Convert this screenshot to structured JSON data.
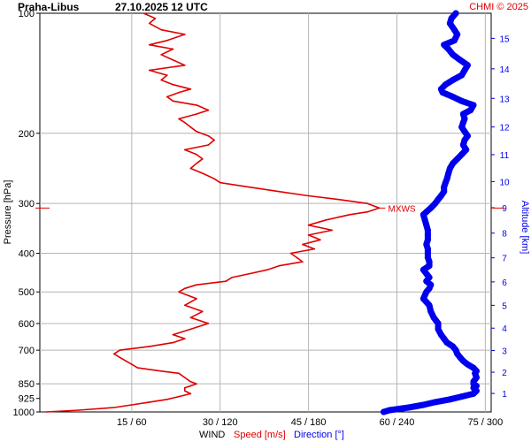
{
  "header": {
    "station": "Praha-Libus",
    "datetime": "27.10.2025 12 UTC",
    "copyright": "CHMI © 2025"
  },
  "axes": {
    "left_label": "Pressure [hPa]",
    "right_label": "Altitude [km]",
    "bottom_wind": "WIND",
    "bottom_speed": "Speed [m/s]",
    "bottom_direction": "Direction [°]"
  },
  "colors": {
    "speed": "#e00000",
    "direction": "#0000ee",
    "grid": "#b4b4b4",
    "max_marker": "#e00000"
  },
  "chart_data": {
    "type": "line",
    "title": "Praha-Libus 27.10.2025 12 UTC",
    "y_scale": "log pressure (inverted)",
    "pressure_ticks": [
      100,
      200,
      300,
      400,
      500,
      600,
      700,
      850,
      925,
      1000
    ],
    "altitude_ticks_km": [
      1,
      2,
      3,
      4,
      5,
      6,
      7,
      8,
      9,
      10,
      11,
      12,
      13,
      14,
      15
    ],
    "x_tick_labels": [
      "15 / 60",
      "30 / 120",
      "45 / 180",
      "60 / 240",
      "75 / 300"
    ],
    "speed_axis": {
      "label": "Speed [m/s]",
      "range": [
        -0.6,
        76
      ],
      "ticks": [
        15,
        30,
        45,
        60,
        75
      ]
    },
    "direction_axis": {
      "label": "Direction [°]",
      "range": [
        -2.4,
        304
      ],
      "ticks": [
        60,
        120,
        180,
        240,
        300
      ]
    },
    "max_wind_label": "MXWS",
    "max_wind_pressure_hPa": 308,
    "series": [
      {
        "name": "Speed [m/s]",
        "unit": "m/s",
        "pressure_hPa": [
          1000,
          990,
          975,
          960,
          945,
          930,
          915,
          900,
          885,
          870,
          860,
          850,
          840,
          820,
          800,
          790,
          775,
          760,
          745,
          730,
          715,
          700,
          685,
          670,
          655,
          640,
          620,
          600,
          580,
          560,
          540,
          520,
          500,
          490,
          480,
          470,
          460,
          450,
          440,
          430,
          420,
          410,
          400,
          390,
          380,
          370,
          360,
          350,
          340,
          330,
          320,
          315,
          308,
          300,
          293,
          287,
          280,
          273,
          266,
          260,
          252,
          245,
          238,
          232,
          226,
          220,
          214,
          208,
          203,
          198,
          193,
          188,
          184,
          179,
          175,
          170,
          166,
          162,
          158,
          155,
          151,
          147,
          143,
          139,
          135,
          131,
          127,
          123,
          120,
          117,
          113,
          110,
          106,
          103,
          100
        ],
        "values": [
          0.5,
          6,
          12,
          15,
          18,
          21,
          23,
          25,
          24,
          24,
          25,
          26,
          25,
          24,
          23,
          20,
          16,
          15,
          14,
          13,
          12,
          13,
          18,
          22,
          24,
          22,
          25,
          28,
          25,
          27,
          24,
          26,
          23,
          24,
          26,
          31,
          32,
          35,
          38,
          40,
          44,
          43,
          42,
          46,
          44,
          47,
          45,
          49,
          45,
          48,
          52,
          55,
          57,
          55,
          50,
          45,
          40,
          35,
          30,
          29,
          27,
          25,
          26,
          27,
          26,
          24,
          28,
          29,
          28,
          26,
          25,
          24,
          23,
          26,
          28,
          26,
          22,
          21,
          23,
          25,
          22,
          20,
          21,
          18,
          24,
          22,
          20,
          22,
          18,
          21,
          24,
          20,
          18,
          19,
          17
        ]
      },
      {
        "name": "Direction [°]",
        "unit": "deg",
        "pressure_hPa": [
          1000,
          990,
          975,
          960,
          945,
          930,
          915,
          900,
          885,
          870,
          860,
          850,
          840,
          820,
          800,
          790,
          775,
          760,
          745,
          730,
          715,
          700,
          685,
          670,
          655,
          640,
          620,
          600,
          580,
          560,
          540,
          520,
          500,
          490,
          480,
          470,
          460,
          450,
          440,
          430,
          420,
          410,
          400,
          390,
          380,
          370,
          360,
          350,
          340,
          330,
          320,
          315,
          308,
          300,
          293,
          287,
          280,
          273,
          266,
          260,
          252,
          245,
          238,
          232,
          226,
          220,
          214,
          208,
          203,
          198,
          193,
          188,
          184,
          179,
          175,
          170,
          166,
          162,
          158,
          155,
          151,
          147,
          143,
          139,
          135,
          131,
          127,
          123,
          120,
          117,
          113,
          110,
          106,
          103,
          100
        ],
        "values": [
          231,
          235,
          248,
          258,
          266,
          276,
          284,
          292,
          294,
          292,
          294,
          292,
          292,
          294,
          293,
          294,
          292,
          288,
          285,
          283,
          281,
          280,
          278,
          274,
          272,
          270,
          268,
          268,
          265,
          263,
          262,
          258,
          260,
          262,
          263,
          260,
          262,
          260,
          258,
          262,
          262,
          261,
          261,
          261,
          260,
          261,
          261,
          261,
          260,
          259,
          258,
          260,
          263,
          266,
          268,
          270,
          272,
          272,
          273,
          274,
          275,
          276,
          278,
          281,
          284,
          287,
          285,
          286,
          288,
          286,
          284,
          285,
          286,
          285,
          290,
          292,
          284,
          278,
          271,
          270,
          273,
          278,
          284,
          286,
          288,
          283,
          278,
          275,
          272,
          279,
          281,
          279,
          276,
          277,
          280
        ]
      }
    ]
  }
}
